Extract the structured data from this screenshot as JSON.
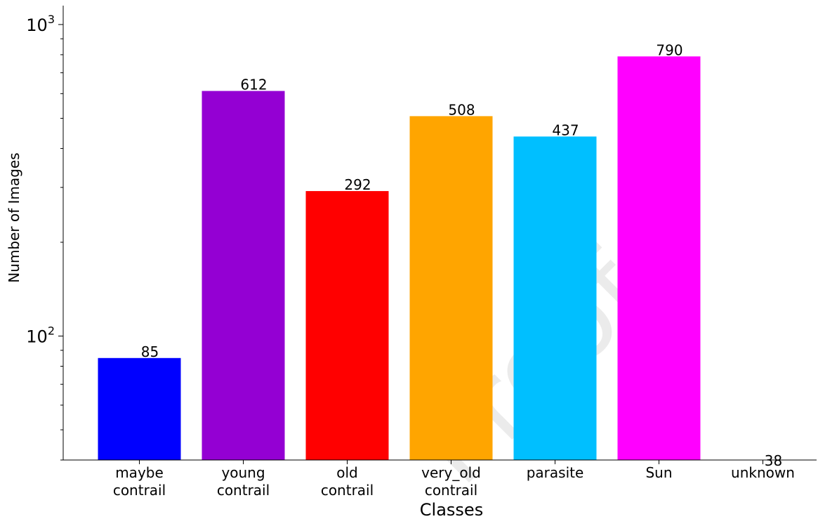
{
  "chart_data": {
    "type": "bar",
    "categories": [
      [
        "maybe",
        "contrail"
      ],
      [
        "young",
        "contrail"
      ],
      [
        "old",
        "contrail"
      ],
      [
        "very_old",
        "contrail"
      ],
      [
        "parasite"
      ],
      [
        "Sun"
      ],
      [
        "unknown"
      ]
    ],
    "values": [
      85,
      612,
      292,
      508,
      437,
      790,
      38
    ],
    "value_labels": [
      "85",
      "612",
      "292",
      "508",
      "437",
      "790",
      "38"
    ],
    "colors": [
      "#0000ff",
      "#9400d3",
      "#ff0000",
      "#ffa500",
      "#00bfff",
      "#ff00ff",
      "#00ffff"
    ],
    "xlabel": "Classes",
    "ylabel": "Number of Images",
    "yscale": "log",
    "ylim": [
      40,
      1150
    ],
    "yticks": [
      {
        "value": 100,
        "base": "10",
        "exp": "2"
      },
      {
        "value": 1000,
        "base": "10",
        "exp": "3"
      }
    ],
    "minor_yticks": [
      40,
      50,
      60,
      70,
      80,
      90,
      200,
      300,
      400,
      500,
      600,
      700,
      800,
      900
    ],
    "grid": false
  },
  "watermark": "Proof"
}
